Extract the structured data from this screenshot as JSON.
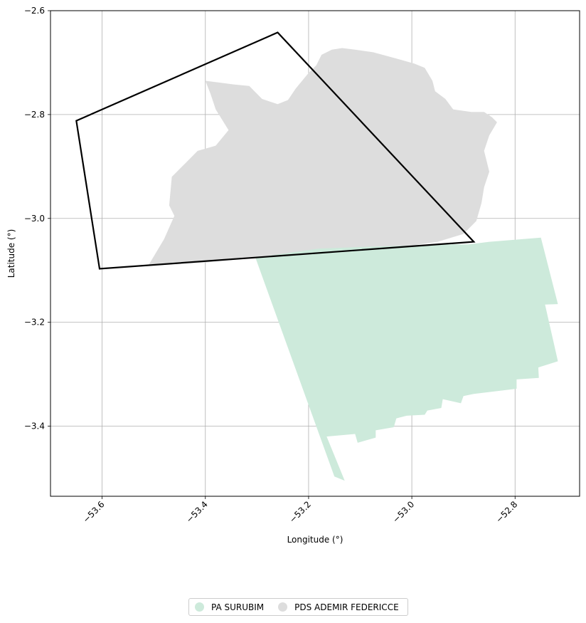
{
  "chart_data": {
    "type": "map",
    "xlabel": "Longitude (°)",
    "ylabel": "Latitude (°)",
    "xlim": [
      -53.7,
      -52.675
    ],
    "ylim": [
      -3.535,
      -2.6
    ],
    "xticks": [
      -53.6,
      -53.4,
      -53.2,
      -53.0,
      -52.8
    ],
    "xtick_labels": [
      "−53.6",
      "−53.4",
      "−53.2",
      "−53.0",
      "−52.8"
    ],
    "yticks": [
      -2.6,
      -2.8,
      -3.0,
      -3.2,
      -3.4
    ],
    "ytick_labels": [
      "−2.6",
      "−2.8",
      "−3.0",
      "−3.2",
      "−3.4"
    ],
    "grid": true,
    "legend_position": "bottom-center",
    "layers": [
      {
        "name": "PA SURUBIM",
        "color": "#cdeadb",
        "coords": [
          [
            -53.305,
            -3.07
          ],
          [
            -53.23,
            -3.058
          ],
          [
            -53.14,
            -3.055
          ],
          [
            -52.94,
            -3.05
          ],
          [
            -52.89,
            -3.05
          ],
          [
            -52.85,
            -3.045
          ],
          [
            -52.75,
            -3.037
          ],
          [
            -52.717,
            -3.165
          ],
          [
            -52.742,
            -3.166
          ],
          [
            -52.717,
            -3.275
          ],
          [
            -52.755,
            -3.287
          ],
          [
            -52.754,
            -3.307
          ],
          [
            -52.797,
            -3.31
          ],
          [
            -52.797,
            -3.328
          ],
          [
            -52.88,
            -3.338
          ],
          [
            -52.9,
            -3.342
          ],
          [
            -52.905,
            -3.356
          ],
          [
            -52.94,
            -3.348
          ],
          [
            -52.943,
            -3.365
          ],
          [
            -52.97,
            -3.37
          ],
          [
            -52.975,
            -3.378
          ],
          [
            -53.01,
            -3.38
          ],
          [
            -53.03,
            -3.385
          ],
          [
            -53.035,
            -3.402
          ],
          [
            -53.07,
            -3.408
          ],
          [
            -53.07,
            -3.422
          ],
          [
            -53.105,
            -3.432
          ],
          [
            -53.11,
            -3.415
          ],
          [
            -53.165,
            -3.42
          ],
          [
            -53.13,
            -3.505
          ],
          [
            -53.15,
            -3.497
          ]
        ]
      },
      {
        "name": "PDS ADEMIR FEDERICCE",
        "color": "#dddddd",
        "coords": [
          [
            -53.51,
            -3.09
          ],
          [
            -53.48,
            -3.04
          ],
          [
            -53.46,
            -2.995
          ],
          [
            -53.47,
            -2.975
          ],
          [
            -53.465,
            -2.92
          ],
          [
            -53.44,
            -2.895
          ],
          [
            -53.415,
            -2.87
          ],
          [
            -53.38,
            -2.86
          ],
          [
            -53.355,
            -2.83
          ],
          [
            -53.38,
            -2.79
          ],
          [
            -53.39,
            -2.76
          ],
          [
            -53.4,
            -2.735
          ],
          [
            -53.375,
            -2.738
          ],
          [
            -53.345,
            -2.742
          ],
          [
            -53.315,
            -2.745
          ],
          [
            -53.29,
            -2.77
          ],
          [
            -53.26,
            -2.78
          ],
          [
            -53.24,
            -2.772
          ],
          [
            -53.225,
            -2.75
          ],
          [
            -53.2,
            -2.72
          ],
          [
            -53.185,
            -2.705
          ],
          [
            -53.175,
            -2.685
          ],
          [
            -53.155,
            -2.675
          ],
          [
            -53.135,
            -2.672
          ],
          [
            -53.11,
            -2.675
          ],
          [
            -53.075,
            -2.68
          ],
          [
            -53.045,
            -2.688
          ],
          [
            -53.02,
            -2.695
          ],
          [
            -52.995,
            -2.702
          ],
          [
            -52.975,
            -2.71
          ],
          [
            -52.96,
            -2.735
          ],
          [
            -52.955,
            -2.755
          ],
          [
            -52.935,
            -2.77
          ],
          [
            -52.92,
            -2.79
          ],
          [
            -52.885,
            -2.795
          ],
          [
            -52.86,
            -2.795
          ],
          [
            -52.845,
            -2.805
          ],
          [
            -52.835,
            -2.815
          ],
          [
            -52.85,
            -2.84
          ],
          [
            -52.86,
            -2.87
          ],
          [
            -52.85,
            -2.91
          ],
          [
            -52.86,
            -2.94
          ],
          [
            -52.865,
            -2.97
          ],
          [
            -52.875,
            -3.005
          ],
          [
            -52.9,
            -3.03
          ],
          [
            -52.95,
            -3.045
          ],
          [
            -53.0,
            -3.052
          ],
          [
            -53.1,
            -3.055
          ],
          [
            -53.18,
            -3.058
          ],
          [
            -53.3,
            -3.075
          ],
          [
            -53.4,
            -3.085
          ]
        ]
      }
    ],
    "outline": {
      "color": "#000000",
      "coords": [
        [
          -53.65,
          -2.812
        ],
        [
          -53.26,
          -2.642
        ],
        [
          -52.88,
          -3.045
        ],
        [
          -53.605,
          -3.097
        ]
      ]
    }
  },
  "legend": {
    "items": [
      {
        "label": "PA SURUBIM",
        "color": "#cdeadb"
      },
      {
        "label": "PDS ADEMIR FEDERICCE",
        "color": "#dddddd"
      }
    ]
  }
}
